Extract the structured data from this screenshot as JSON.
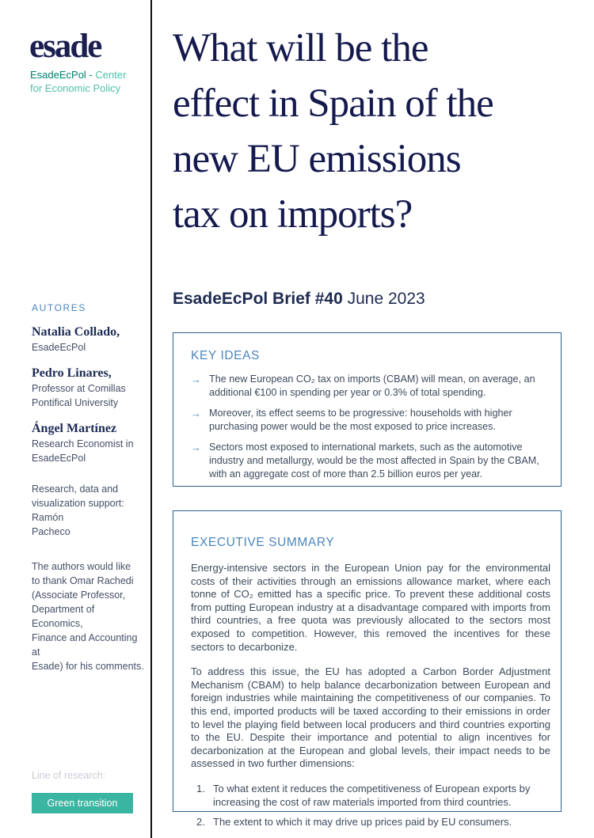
{
  "colors": {
    "navy": "#151a4e",
    "accent_blue": "#4c86bd",
    "panel_border_blue": "#2b5f90",
    "body_text": "#3d4a5c",
    "brand_teal_dark": "#00806f",
    "brand_teal_light": "#4fbfa9",
    "button_teal": "#3ab5a1",
    "muted_gray": "#c8ccd4"
  },
  "brand": {
    "logo": "esade",
    "subtitle_line1_dark": "EsadeEcPol -",
    "subtitle_line1_light": " Center",
    "subtitle_line2": "for Economic Policy"
  },
  "sidebar": {
    "authors_heading": "AUTORES",
    "authors": [
      {
        "name": "Natalia Collado,",
        "affiliation": "EsadeEcPol"
      },
      {
        "name": "Pedro Linares,",
        "affiliation": "Professor at Comillas\nPontifical University"
      },
      {
        "name": "Ángel Martínez",
        "affiliation": "Research Economist in\nEsadeEcPol"
      }
    ],
    "support_note": "Research, data and\nvisualization support: Ramón\nPacheco",
    "acknowledgment": "The authors would like\nto thank Omar Rachedi\n(Associate Professor,\nDepartment of Economics,\nFinance and Accounting at\nEsade) for his comments.",
    "line_of_research_label": "Line of research:",
    "line_of_research_button": "Green transition"
  },
  "header": {
    "title_lines": [
      "What will be the",
      "effect in Spain of the",
      "new EU emissions",
      "tax on imports?"
    ],
    "brief_label": "EsadeEcPol Brief #40",
    "brief_date": " June 2023"
  },
  "key_ideas": {
    "heading": "KEY IDEAS",
    "bullet_glyph": "→",
    "items": [
      "The new European CO₂ tax on imports (CBAM) will mean, on average, an additional €100 in spending per year or 0.3% of total spending.",
      "Moreover, its effect seems to be progressive: households with higher purchasing power would be the most exposed to price increases.",
      "Sectors most exposed to international markets, such as the automotive industry and metallurgy, would be the most affected in Spain by the CBAM, with an aggregate cost of more than 2.5 billion euros per year."
    ]
  },
  "executive_summary": {
    "heading": "EXECUTIVE SUMMARY",
    "paragraphs": [
      "Energy-intensive sectors in the European Union pay for the environmental costs of their activities through an emissions allowance market, where each tonne of CO₂ emitted has a specific price. To prevent these additional costs from putting European industry at a disadvantage compared with imports from third countries, a free quota was previously allocated to the sectors most exposed to competition. However, this removed the incentives for these sectors to decarbonize.",
      "To address this issue, the EU has adopted a Carbon Border Adjustment Mechanism (CBAM) to help balance decarbonization between European and foreign industries while maintaining the competitiveness of our companies. To this end, imported products will be taxed according to their emissions in order to level the playing field between local producers and third countries exporting to the EU. Despite their importance and potential to align incentives for decarbonization at the European and global levels, their impact needs to be assessed in two further dimensions:"
    ],
    "numbered_items": [
      {
        "number": "1.",
        "text": "To what extent it reduces the competitiveness of European exports by increasing the cost of raw materials imported from third countries."
      },
      {
        "number": "2.",
        "text": "The extent to which it may drive up prices paid by EU consumers."
      }
    ]
  }
}
